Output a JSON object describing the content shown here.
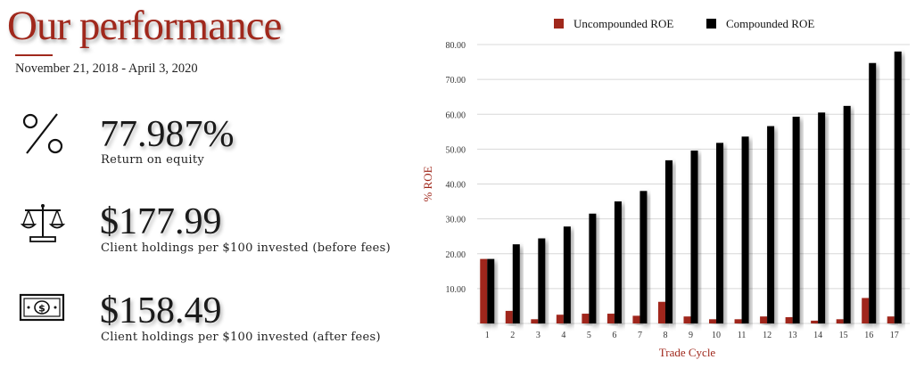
{
  "header": {
    "title": "Our performance",
    "date_range": "November 21, 2018 - April 3, 2020"
  },
  "stats": [
    {
      "value": "77.987%",
      "label": "Return on equity",
      "icon": "percent-icon"
    },
    {
      "value": "$177.99",
      "label": "Client holdings per $100 invested (before fees)",
      "icon": "scales-icon"
    },
    {
      "value": "$158.49",
      "label": "Client holdings per $100 invested (after fees)",
      "icon": "banknote-icon"
    }
  ],
  "chart_data": {
    "type": "bar",
    "xlabel": "Trade Cycle",
    "ylabel": "% ROE",
    "ylim": [
      0,
      80
    ],
    "yticks": [
      "10.00",
      "20.00",
      "30.00",
      "40.00",
      "50.00",
      "60.00",
      "70.00",
      "80.00"
    ],
    "ytick_values": [
      10,
      20,
      30,
      40,
      50,
      60,
      70,
      80
    ],
    "categories": [
      "1",
      "2",
      "3",
      "4",
      "5",
      "6",
      "7",
      "8",
      "9",
      "10",
      "11",
      "12",
      "13",
      "14",
      "15",
      "16",
      "17"
    ],
    "grid": true,
    "legend_position": "top",
    "series": [
      {
        "name": "Uncompounded ROE",
        "color": "#a0281c",
        "values": [
          18.5,
          3.6,
          1.2,
          2.5,
          2.8,
          2.8,
          2.2,
          6.2,
          2.0,
          1.2,
          1.2,
          2.0,
          1.8,
          0.8,
          1.2,
          7.3,
          2.0
        ]
      },
      {
        "name": "Compounded ROE",
        "color": "#000000",
        "values": [
          18.5,
          22.7,
          24.4,
          27.8,
          31.5,
          35.0,
          38.0,
          46.8,
          49.6,
          51.8,
          53.6,
          56.6,
          59.3,
          60.5,
          62.4,
          74.7,
          78.0
        ]
      }
    ]
  }
}
